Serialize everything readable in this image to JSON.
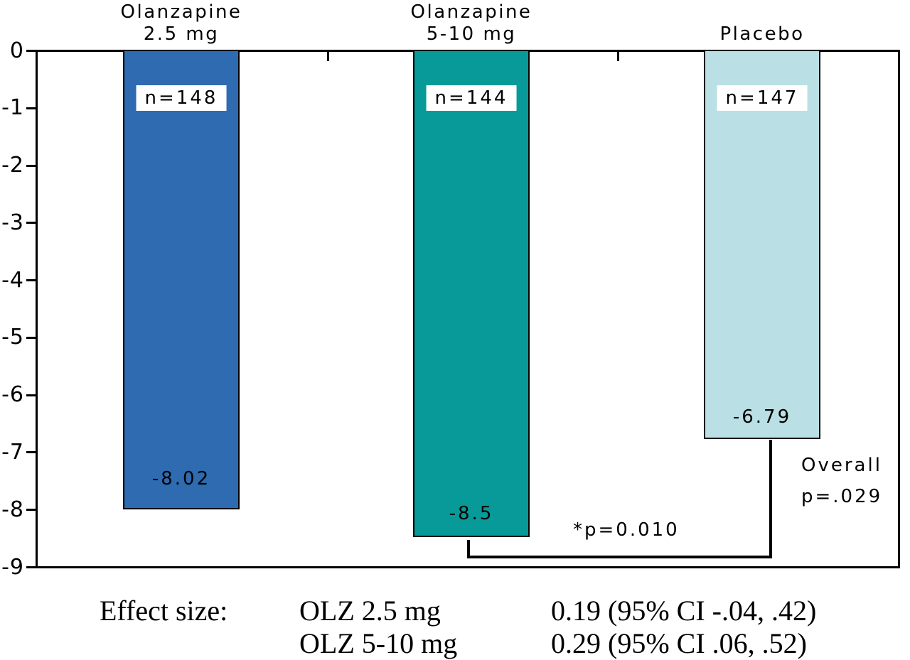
{
  "chart_data": {
    "type": "bar",
    "title": "",
    "xlabel": "",
    "ylabel": "",
    "categories": [
      "Olanzapine 2.5 mg",
      "Olanzapine 5-10 mg",
      "Placebo"
    ],
    "values": [
      -8.02,
      -8.5,
      -6.79
    ],
    "ylim": [
      -9,
      0
    ],
    "yticks": [
      "0",
      "-1",
      "-2",
      "-3",
      "-4",
      "-5",
      "-6",
      "-7",
      "-8",
      "-9"
    ],
    "grid": false,
    "legend": "none",
    "bars": [
      {
        "label_lines": [
          "Olanzapine",
          "2.5 mg"
        ],
        "n_label": "n=148",
        "value": -8.02,
        "value_label": "-8.02",
        "color": "#2e6bb0"
      },
      {
        "label_lines": [
          "Olanzapine",
          "5-10 mg"
        ],
        "n_label": "n=144",
        "value": -8.5,
        "value_label": "-8.5",
        "color": "#079a98"
      },
      {
        "label_lines": [
          "Placebo"
        ],
        "n_label": "n=147",
        "value": -6.79,
        "value_label": "-6.79",
        "color": "#badfe4"
      }
    ],
    "annotations": {
      "pairwise_p": "*p=0.010",
      "overall_line1": "Overall",
      "overall_line2": "p=.029"
    }
  },
  "footer": {
    "label": "Effect size:",
    "rows": [
      {
        "name": "OLZ 2.5 mg",
        "value": "0.19 (95% CI -.04, .42)"
      },
      {
        "name": "OLZ 5-10 mg",
        "value": "0.29 (95% CI .06, .52)"
      }
    ]
  },
  "colors": {
    "axis": "#000000",
    "background": "#ffffff",
    "bar_olz_2_5": "#2e6bb0",
    "bar_olz_5_10": "#079a98",
    "bar_placebo": "#badfe4"
  }
}
